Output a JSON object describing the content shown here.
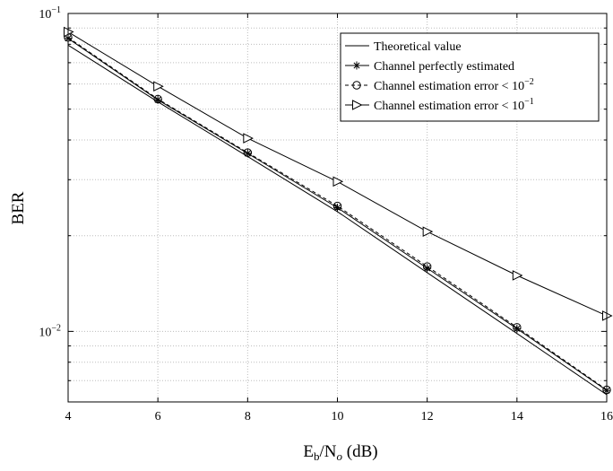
{
  "chart_data": {
    "type": "line",
    "title": "",
    "xlabel_base": "E",
    "xlabel_sub1": "b",
    "xlabel_mid": "/N",
    "xlabel_sub2": "o",
    "xlabel_unit": " (dB)",
    "ylabel": "BER",
    "x": [
      4,
      6,
      8,
      10,
      12,
      14,
      16
    ],
    "xlim": [
      4,
      16
    ],
    "ylim": [
      0.006,
      0.1
    ],
    "yscale": "log",
    "grid": true,
    "legend_position": "top-right",
    "x_ticks": [
      "4",
      "6",
      "8",
      "10",
      "12",
      "14",
      "16"
    ],
    "y_tick_labels": [
      {
        "value": 0.1,
        "mantissa": "10",
        "exp": "−1"
      },
      {
        "value": 0.01,
        "mantissa": "10",
        "exp": "−2"
      }
    ],
    "series": [
      {
        "name": "Theoretical value",
        "marker": "none",
        "dash": "solid",
        "values": [
          0.0795,
          0.0527,
          0.0355,
          0.0238,
          0.0153,
          0.00985,
          0.00632
        ]
      },
      {
        "name": "Channel perfectly estimated",
        "marker": "asterisk",
        "dash": "solid",
        "values": [
          0.0835,
          0.0535,
          0.0363,
          0.0245,
          0.0158,
          0.0102,
          0.00652
        ]
      },
      {
        "name": "Channel estimation error < 10",
        "name_exp": "−2",
        "marker": "circle",
        "dash": "dashed",
        "values": [
          0.084,
          0.0538,
          0.0365,
          0.0248,
          0.016,
          0.0103,
          0.00655
        ]
      },
      {
        "name": "Channel estimation error < 10",
        "name_exp": "−1",
        "marker": "triangle-right",
        "dash": "solid",
        "values": [
          0.0875,
          0.059,
          0.0405,
          0.0296,
          0.0206,
          0.015,
          0.0112
        ]
      }
    ]
  }
}
